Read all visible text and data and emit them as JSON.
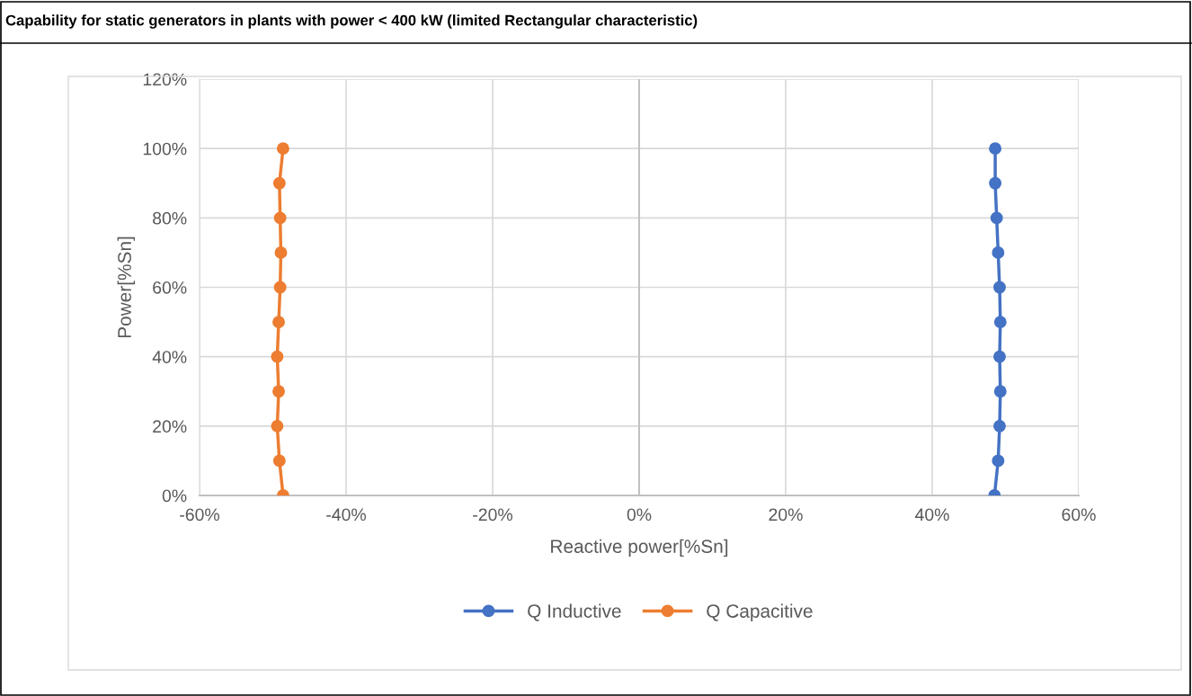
{
  "chart_data": {
    "type": "line",
    "title": "Capability for static generators in plants with power < 400 kW (limited Rectangular characteristic)",
    "xlabel": "Reactive power[%Sn]",
    "ylabel": "Power[%Sn]",
    "series": [
      {
        "name": "Q Inductive",
        "color": "#4472c4",
        "x": [
          48.5,
          49.0,
          49.2,
          49.3,
          49.2,
          49.3,
          49.2,
          49.0,
          48.8,
          48.6,
          48.6
        ],
        "values": [
          0,
          10,
          20,
          30,
          40,
          50,
          60,
          70,
          80,
          90,
          100
        ]
      },
      {
        "name": "Q Capacitive",
        "color": "#ed7d31",
        "x": [
          -48.6,
          -49.1,
          -49.4,
          -49.2,
          -49.4,
          -49.2,
          -49.0,
          -48.9,
          -49.0,
          -49.1,
          -48.6
        ],
        "values": [
          0,
          10,
          20,
          30,
          40,
          50,
          60,
          70,
          80,
          90,
          100
        ]
      }
    ],
    "xlim": [
      -60,
      60
    ],
    "xticks": [
      {
        "value": -60,
        "label": "-60%"
      },
      {
        "value": -40,
        "label": "-40%"
      },
      {
        "value": -20,
        "label": "-20%"
      },
      {
        "value": 0,
        "label": "0%"
      },
      {
        "value": 20,
        "label": "20%"
      },
      {
        "value": 40,
        "label": "40%"
      },
      {
        "value": 60,
        "label": "60%"
      }
    ],
    "ylim": [
      0,
      120
    ],
    "yticks": [
      {
        "value": 0,
        "label": "0%"
      },
      {
        "value": 20,
        "label": "20%"
      },
      {
        "value": 40,
        "label": "40%"
      },
      {
        "value": 60,
        "label": "60%"
      },
      {
        "value": 80,
        "label": "80%"
      },
      {
        "value": 100,
        "label": "100%"
      },
      {
        "value": 120,
        "label": "120%"
      }
    ],
    "grid": true,
    "legend": "bottom",
    "marker": "circle",
    "line_style": "solid"
  }
}
